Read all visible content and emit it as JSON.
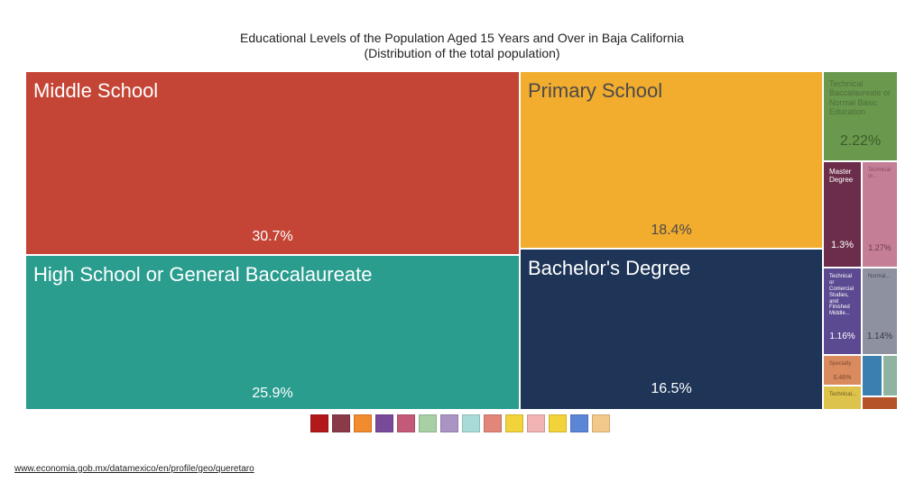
{
  "title": "Educational Levels of the Population Aged 15 Years and Over in Baja California",
  "subtitle": "(Distribution of the total population)",
  "source": "www.economia.gob.mx/datamexico/en/profile/geo/queretaro",
  "chart_data": {
    "type": "treemap",
    "unit": "%",
    "items": [
      {
        "label": "Middle School",
        "value_label": "30.7%",
        "value": 30.7,
        "color": "#c44536"
      },
      {
        "label": "High School or General Baccalaureate",
        "value_label": "25.9%",
        "value": 25.9,
        "color": "#2a9d8f"
      },
      {
        "label": "Primary School",
        "value_label": "18.4%",
        "value": 18.4,
        "color": "#f2ac2e"
      },
      {
        "label": "Bachelor's Degree",
        "value_label": "16.5%",
        "value": 16.5,
        "color": "#1e3557"
      },
      {
        "label": "Technical Baccalaureate or Normal Basic Education",
        "value_label": "2.22%",
        "value": 2.22,
        "color": "#6a994e"
      },
      {
        "label": "Master Degree",
        "value_label": "1.3%",
        "value": 1.3,
        "color": "#6b2d4a"
      },
      {
        "label": "Technical or...",
        "value_label": "1.27%",
        "value": 1.27,
        "color": "#c47f97"
      },
      {
        "label": "Technical or Comercial Studies, and Finished Middle...",
        "value_label": "1.16%",
        "value": 1.16,
        "color": "#5b4a91"
      },
      {
        "label": "Normal...",
        "value_label": "1.14%",
        "value": 1.14,
        "color": "#8e91a0"
      },
      {
        "label": "Specialty",
        "value_label": "0.46%",
        "value": 0.46,
        "color": "#d98a5f"
      },
      {
        "label": "Technical...",
        "value_label": "",
        "value": 0.3,
        "color": "#ddc24b"
      },
      {
        "label": "",
        "value_label": "",
        "value": 0.25,
        "color": "#3a7fb0"
      },
      {
        "label": "",
        "value_label": "",
        "value": 0.2,
        "color": "#8fb3a0"
      },
      {
        "label": "",
        "value_label": "",
        "value": 0.15,
        "color": "#b5522a"
      }
    ]
  },
  "legend": {
    "swatches": [
      "#b3191b",
      "#8b3a4a",
      "#f28a2e",
      "#7a4a9a",
      "#c45a7a",
      "#a9cfa5",
      "#a994c4",
      "#a9dcd8",
      "#e2867a",
      "#f2d43a",
      "#f2b3b5",
      "#f2d43a",
      "#5b86d6",
      "#f2c98a"
    ]
  }
}
